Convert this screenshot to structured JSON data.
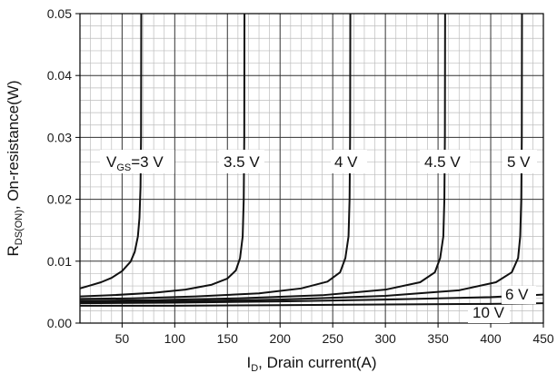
{
  "chart_data": {
    "type": "line",
    "xlabel": {
      "main": "I",
      "sub": "D",
      "rest": ", Drain current(A)"
    },
    "ylabel": {
      "main": "R",
      "sub": "DS(ON)",
      "rest": ", On-resistance(W)"
    },
    "xlim": [
      10,
      450
    ],
    "ylim": [
      0,
      0.05
    ],
    "x_ticks": [
      50,
      100,
      150,
      200,
      250,
      300,
      350,
      400,
      450
    ],
    "y_ticks": [
      0.0,
      0.01,
      0.02,
      0.03,
      0.04,
      0.05
    ],
    "x_tick_labels": [
      "50",
      "100",
      "150",
      "200",
      "250",
      "300",
      "350",
      "400",
      "450"
    ],
    "y_tick_labels": [
      "0.00",
      "0.01",
      "0.02",
      "0.03",
      "0.04",
      "0.05"
    ],
    "grid": true,
    "series": [
      {
        "name": "3 V",
        "label": {
          "pre": "V",
          "sub": "GS",
          "post": "=3 V"
        },
        "points": [
          [
            10,
            0.0056
          ],
          [
            20,
            0.0061
          ],
          [
            30,
            0.0066
          ],
          [
            40,
            0.0073
          ],
          [
            50,
            0.0084
          ],
          [
            58,
            0.0099
          ],
          [
            62,
            0.0115
          ],
          [
            65,
            0.014
          ],
          [
            66.5,
            0.017
          ],
          [
            67.5,
            0.022
          ],
          [
            68,
            0.03
          ],
          [
            68.2,
            0.05
          ]
        ]
      },
      {
        "name": "3.5 V",
        "label": {
          "pre": "",
          "sub": "",
          "post": "3.5 V"
        },
        "points": [
          [
            10,
            0.0043
          ],
          [
            40,
            0.0045
          ],
          [
            80,
            0.0049
          ],
          [
            110,
            0.0054
          ],
          [
            135,
            0.0062
          ],
          [
            150,
            0.0072
          ],
          [
            158,
            0.0085
          ],
          [
            162,
            0.0105
          ],
          [
            164.5,
            0.014
          ],
          [
            165.5,
            0.02
          ],
          [
            166,
            0.03
          ],
          [
            166.2,
            0.05
          ]
        ]
      },
      {
        "name": "4 V",
        "label": {
          "pre": "",
          "sub": "",
          "post": "4 V"
        },
        "points": [
          [
            10,
            0.0039
          ],
          [
            60,
            0.004
          ],
          [
            120,
            0.0043
          ],
          [
            180,
            0.0048
          ],
          [
            220,
            0.0056
          ],
          [
            245,
            0.0067
          ],
          [
            257,
            0.0082
          ],
          [
            262,
            0.0105
          ],
          [
            265,
            0.014
          ],
          [
            266,
            0.02
          ],
          [
            266.5,
            0.03
          ],
          [
            266.7,
            0.05
          ]
        ]
      },
      {
        "name": "4.5 V",
        "label": {
          "pre": "",
          "sub": "",
          "post": "4.5 V"
        },
        "points": [
          [
            10,
            0.0036
          ],
          [
            80,
            0.0037
          ],
          [
            160,
            0.004
          ],
          [
            240,
            0.0045
          ],
          [
            300,
            0.0054
          ],
          [
            333,
            0.0066
          ],
          [
            347,
            0.0082
          ],
          [
            352,
            0.0105
          ],
          [
            355,
            0.014
          ],
          [
            356,
            0.02
          ],
          [
            356.5,
            0.03
          ],
          [
            356.7,
            0.05
          ]
        ]
      },
      {
        "name": "5 V",
        "label": {
          "pre": "",
          "sub": "",
          "post": "5 V"
        },
        "points": [
          [
            10,
            0.0034
          ],
          [
            100,
            0.0035
          ],
          [
            200,
            0.0038
          ],
          [
            300,
            0.0044
          ],
          [
            370,
            0.0053
          ],
          [
            405,
            0.0066
          ],
          [
            420,
            0.0082
          ],
          [
            426,
            0.0105
          ],
          [
            428,
            0.014
          ],
          [
            429,
            0.02
          ],
          [
            429.5,
            0.03
          ],
          [
            429.7,
            0.05
          ]
        ]
      },
      {
        "name": "6 V",
        "label": {
          "pre": "",
          "sub": "",
          "post": "6 V"
        },
        "points": [
          [
            10,
            0.0032
          ],
          [
            100,
            0.0033
          ],
          [
            200,
            0.0035
          ],
          [
            300,
            0.0038
          ],
          [
            400,
            0.0042
          ],
          [
            450,
            0.0046
          ]
        ]
      },
      {
        "name": "10 V",
        "label": {
          "pre": "",
          "sub": "",
          "post": "10 V"
        },
        "points": [
          [
            10,
            0.0028
          ],
          [
            100,
            0.0028
          ],
          [
            200,
            0.0029
          ],
          [
            300,
            0.003
          ],
          [
            400,
            0.0031
          ],
          [
            450,
            0.0032
          ]
        ]
      }
    ]
  },
  "style": {
    "line_color": "#111111",
    "grid_major_color": "#333333",
    "grid_minor_color": "#bdbdbd"
  }
}
